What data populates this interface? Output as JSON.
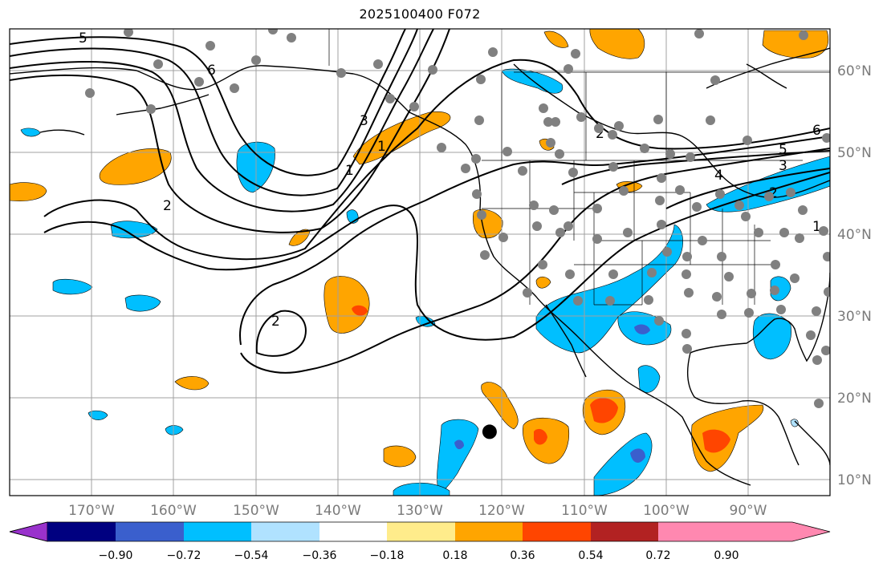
{
  "title": "2025100400 F072",
  "map": {
    "projection": "PlateCarree",
    "lon_range": [
      -180,
      -80
    ],
    "lat_range": [
      8,
      65
    ],
    "lon_labels": [
      "170°W",
      "160°W",
      "150°W",
      "140°W",
      "130°W",
      "120°W",
      "110°W",
      "100°W",
      "90°W"
    ],
    "lat_labels": [
      "10°N",
      "20°N",
      "30°N",
      "40°N",
      "50°N",
      "60°N"
    ]
  },
  "contour_labels": [
    "5",
    "6",
    "3",
    "1",
    "2",
    "2",
    "1",
    "6",
    "5",
    "4",
    "3",
    "2",
    "2",
    "1"
  ],
  "colorbar": {
    "ticks": [
      "−0.90",
      "−0.72",
      "−0.54",
      "−0.36",
      "−0.18",
      "0.18",
      "0.36",
      "0.54",
      "0.72",
      "0.90"
    ],
    "colors": [
      "#9932cc",
      "#000080",
      "#3a5fcd",
      "#00bfff",
      "#b0e2ff",
      "#ffffff",
      "#ffec8b",
      "#ffa500",
      "#ff4500",
      "#b22222",
      "#ff88b0"
    ]
  },
  "marker": {
    "lon": -121.5,
    "lat": 15.8
  },
  "colors": {
    "frame": "#000000",
    "grid": "#a0a0a0",
    "station": "#808080"
  }
}
